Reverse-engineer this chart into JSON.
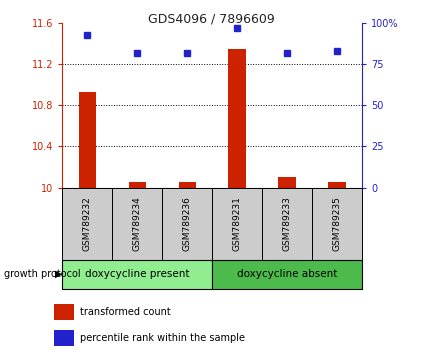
{
  "title": "GDS4096 / 7896609",
  "samples": [
    "GSM789232",
    "GSM789234",
    "GSM789236",
    "GSM789231",
    "GSM789233",
    "GSM789235"
  ],
  "red_values": [
    10.93,
    10.05,
    10.05,
    11.35,
    10.1,
    10.05
  ],
  "blue_values": [
    93,
    82,
    82,
    97,
    82,
    83
  ],
  "ylim_left": [
    10,
    11.6
  ],
  "ylim_right": [
    0,
    100
  ],
  "yticks_left": [
    10,
    10.4,
    10.8,
    11.2,
    11.6
  ],
  "yticks_right": [
    0,
    25,
    50,
    75,
    100
  ],
  "ytick_labels_right": [
    "0",
    "25",
    "50",
    "75",
    "100%"
  ],
  "groups": [
    {
      "label": "doxycycline present",
      "indices": [
        0,
        1,
        2
      ],
      "color": "#90ee90"
    },
    {
      "label": "doxycycline absent",
      "indices": [
        3,
        4,
        5
      ],
      "color": "#4cbb4c"
    }
  ],
  "group_protocol_label": "growth protocol",
  "bar_color": "#cc2200",
  "dot_color": "#2222cc",
  "tick_bg_color": "#cccccc",
  "grid_color": "#555555",
  "title_color": "#222222",
  "left_tick_color": "#cc2200",
  "right_tick_color": "#2222cc",
  "legend_red_label": "transformed count",
  "legend_blue_label": "percentile rank within the sample",
  "bar_width": 0.35
}
